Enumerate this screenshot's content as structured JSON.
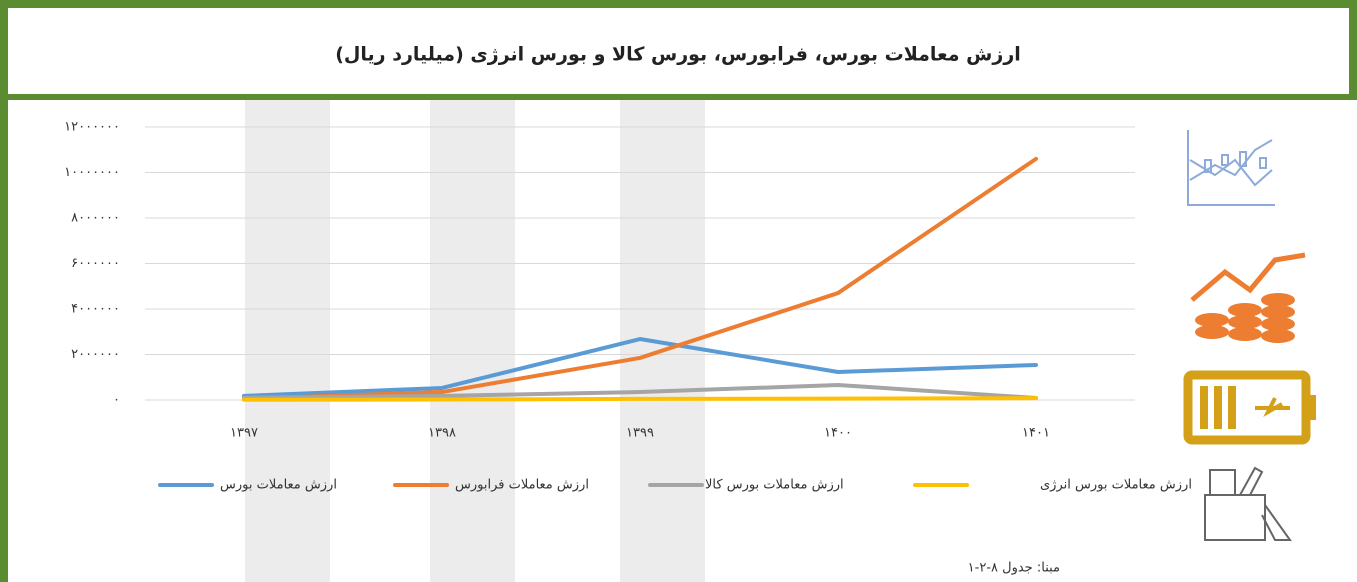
{
  "chart_data": {
    "type": "line",
    "title": "ارزش معاملات بورس، فرابورس، بورس کالا و بورس انرژی (میلیارد ریال)",
    "categories": [
      "۱۳۹۷",
      "۱۳۹۸",
      "۱۳۹۹",
      "۱۴۰۰",
      "۱۴۰۱"
    ],
    "series": [
      {
        "name": "ارزش معاملات بورس",
        "color": "#5b9bd5",
        "values": [
          180000,
          530000,
          2680000,
          1230000,
          1540000
        ]
      },
      {
        "name": "ارزش معاملات فرابورس",
        "color": "#ed7d31",
        "values": [
          50000,
          350000,
          1850000,
          4700000,
          10600000
        ]
      },
      {
        "name": "ارزش معاملات بورس کالا",
        "color": "#a5a5a5",
        "values": [
          100000,
          180000,
          350000,
          660000,
          90000
        ]
      },
      {
        "name": "ارزش معاملات بورس انرژی",
        "color": "#ffc000",
        "values": [
          10000,
          20000,
          50000,
          60000,
          80000
        ]
      }
    ],
    "ylim": [
      0,
      12000000
    ],
    "yticks": [
      {
        "value": 0,
        "label": "۰"
      },
      {
        "value": 2000000,
        "label": "۲۰۰۰۰۰۰"
      },
      {
        "value": 4000000,
        "label": "۴۰۰۰۰۰۰"
      },
      {
        "value": 6000000,
        "label": "۶۰۰۰۰۰۰"
      },
      {
        "value": 8000000,
        "label": "۸۰۰۰۰۰۰"
      },
      {
        "value": 10000000,
        "label": "۱۰۰۰۰۰۰۰"
      },
      {
        "value": 12000000,
        "label": "۱۲۰۰۰۰۰۰"
      }
    ],
    "grid": true,
    "legend": "bottom",
    "source": "مبنا: جدول ۸-۲-۱"
  }
}
